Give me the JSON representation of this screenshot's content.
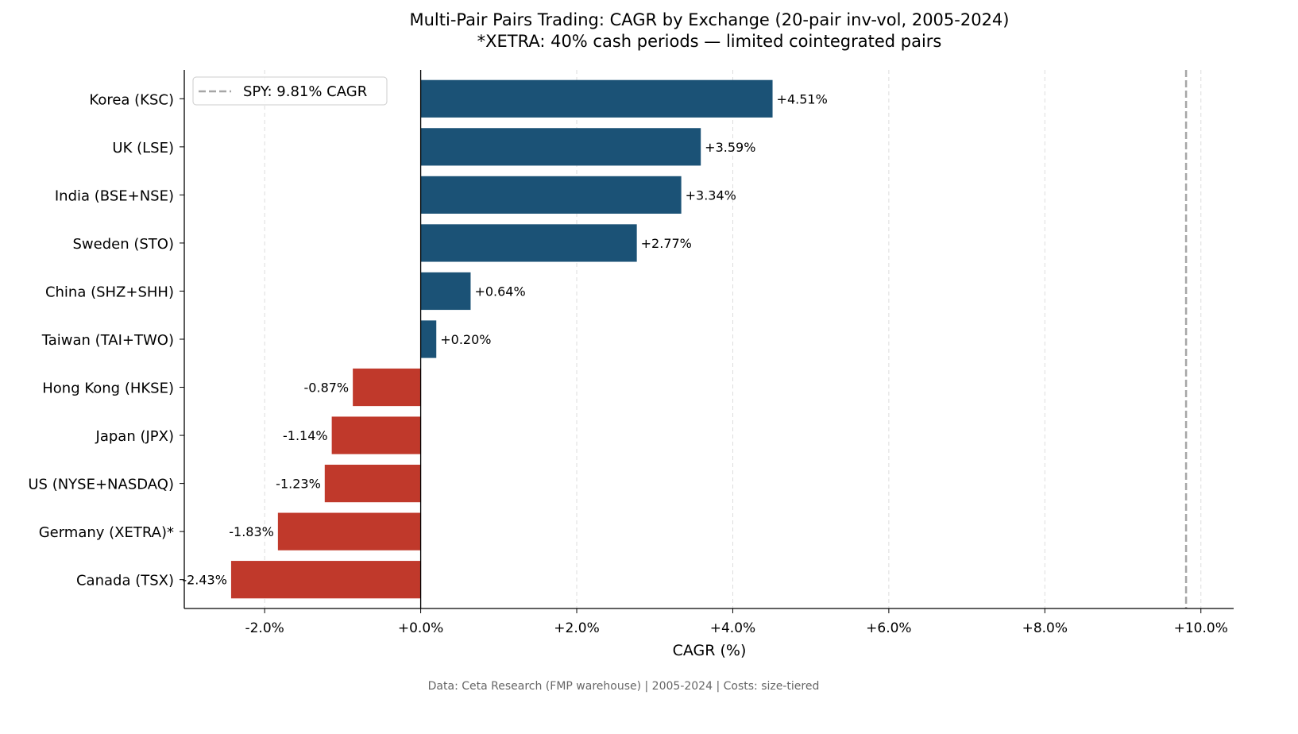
{
  "chart_data": {
    "type": "bar",
    "orientation": "horizontal",
    "title": "Multi-Pair Pairs Trading: CAGR by Exchange (20-pair inv-vol, 2005-2024)",
    "subtitle": "*XETRA: 40% cash periods — limited cointegrated pairs",
    "xlabel": "CAGR (%)",
    "ylabel": "",
    "categories": [
      "Korea (KSC)",
      "UK (LSE)",
      "India (BSE+NSE)",
      "Sweden (STO)",
      "China (SHZ+SHH)",
      "Taiwan (TAI+TWO)",
      "Hong Kong (HKSE)",
      "Japan (JPX)",
      "US (NYSE+NASDAQ)",
      "Germany (XETRA)*",
      "Canada (TSX)"
    ],
    "values": [
      4.51,
      3.59,
      3.34,
      2.77,
      0.64,
      0.2,
      -0.87,
      -1.14,
      -1.23,
      -1.83,
      -2.43
    ],
    "data_labels": [
      "+4.51%",
      "+3.59%",
      "+3.34%",
      "+2.77%",
      "+0.64%",
      "+0.20%",
      "-0.87%",
      "-1.14%",
      "-1.23%",
      "-1.83%",
      "-2.43%"
    ],
    "xlim": [
      -3.03,
      10.42
    ],
    "xticks": [
      -2,
      0,
      2,
      4,
      6,
      8,
      10
    ],
    "xtick_labels": [
      "-2.0%",
      "+0.0%",
      "+2.0%",
      "+4.0%",
      "+6.0%",
      "+8.0%",
      "+10.0%"
    ],
    "grid": "x-dashed",
    "reference_line": {
      "value": 9.81,
      "label": "SPY: 9.81% CAGR",
      "style": "dashed",
      "color": "#a6a6a6"
    },
    "legend_placement": "top-left",
    "colors": {
      "positive": "#1b5276",
      "negative": "#c0392b"
    },
    "footer": "Data: Ceta Research (FMP warehouse) | 2005-2024 | Costs: size-tiered"
  }
}
